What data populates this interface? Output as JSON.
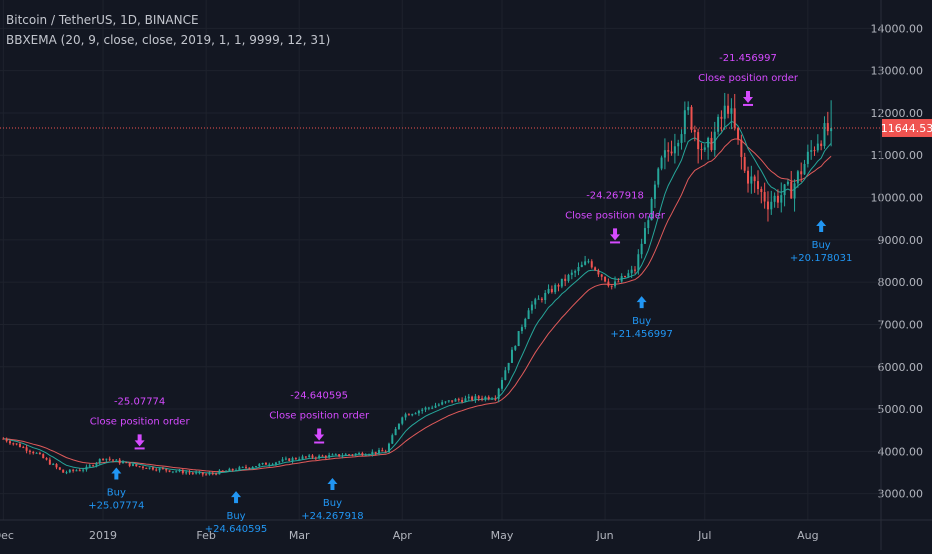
{
  "header": {
    "symbol_line": "Bitcoin / TetherUS, 1D, BINANCE",
    "indicator_line": "BBXEMA (20, 9, close, close, 2019, 1, 1, 9999, 12, 31)"
  },
  "colors": {
    "background": "#131722",
    "grid": "#1e222d",
    "up_candle": "#26a69a",
    "down_candle": "#ef5350",
    "ema_fast": "#26a69a",
    "ema_slow": "#e05a5a",
    "buy_marker": "#2196f3",
    "close_marker": "#d54bff",
    "price_line": "#ef5350",
    "axis_text": "#b2b5be"
  },
  "chart_data": {
    "type": "candlestick",
    "ylim": [
      2600,
      14500
    ],
    "y_ticks": [
      "3000.00",
      "4000.00",
      "5000.00",
      "6000.00",
      "7000.00",
      "8000.00",
      "9000.00",
      "10000.00",
      "11000.00",
      "12000.00",
      "13000.00",
      "14000.00"
    ],
    "x_ticks": [
      {
        "label": "Dec",
        "day": -30
      },
      {
        "label": "2019",
        "day": 0
      },
      {
        "label": "Feb",
        "day": 31
      },
      {
        "label": "Mar",
        "day": 59
      },
      {
        "label": "Apr",
        "day": 90
      },
      {
        "label": "May",
        "day": 120
      },
      {
        "label": "Jun",
        "day": 151
      },
      {
        "label": "Jul",
        "day": 181
      },
      {
        "label": "Aug",
        "day": 212
      }
    ],
    "last_price": "11644.53",
    "last_price_value": 11644.53,
    "price_path": [
      [
        -30,
        4300
      ],
      [
        -20,
        3950
      ],
      [
        -12,
        3500
      ],
      [
        -5,
        3600
      ],
      [
        0,
        3850
      ],
      [
        10,
        3650
      ],
      [
        20,
        3550
      ],
      [
        31,
        3450
      ],
      [
        45,
        3650
      ],
      [
        59,
        3850
      ],
      [
        70,
        3900
      ],
      [
        85,
        4000
      ],
      [
        90,
        4850
      ],
      [
        105,
        5200
      ],
      [
        118,
        5300
      ],
      [
        128,
        7400
      ],
      [
        138,
        8000
      ],
      [
        146,
        8500
      ],
      [
        153,
        7900
      ],
      [
        160,
        8300
      ],
      [
        168,
        10800
      ],
      [
        176,
        12000
      ],
      [
        181,
        11000
      ],
      [
        188,
        12200
      ],
      [
        193,
        10600
      ],
      [
        200,
        9900
      ],
      [
        207,
        10200
      ],
      [
        215,
        11400
      ],
      [
        219,
        11644
      ]
    ],
    "signals": [
      {
        "kind": "buy",
        "day": 4,
        "price": 3950,
        "labels": [
          "Buy",
          "+25.07774"
        ]
      },
      {
        "kind": "close",
        "day": 11,
        "price": 3880,
        "labels": [
          "-25.07774",
          "Close position order"
        ]
      },
      {
        "kind": "buy",
        "day": 40,
        "price": 3390,
        "labels": [
          "Buy",
          "+24.640595"
        ]
      },
      {
        "kind": "close",
        "day": 65,
        "price": 4020,
        "labels": [
          "-24.640595",
          "Close position order"
        ]
      },
      {
        "kind": "buy",
        "day": 69,
        "price": 3700,
        "labels": [
          "Buy",
          "+24.267918"
        ]
      },
      {
        "kind": "close",
        "day": 154,
        "price": 8750,
        "labels": [
          "-24.267918",
          "Close position order"
        ]
      },
      {
        "kind": "buy",
        "day": 162,
        "price": 8000,
        "labels": [
          "Buy",
          "+21.456997"
        ]
      },
      {
        "kind": "close",
        "day": 194,
        "price": 12000,
        "labels": [
          "-21.456997",
          "Close position order"
        ]
      },
      {
        "kind": "buy",
        "day": 216,
        "price": 9800,
        "labels": [
          "Buy",
          "+20.178031"
        ]
      }
    ]
  }
}
